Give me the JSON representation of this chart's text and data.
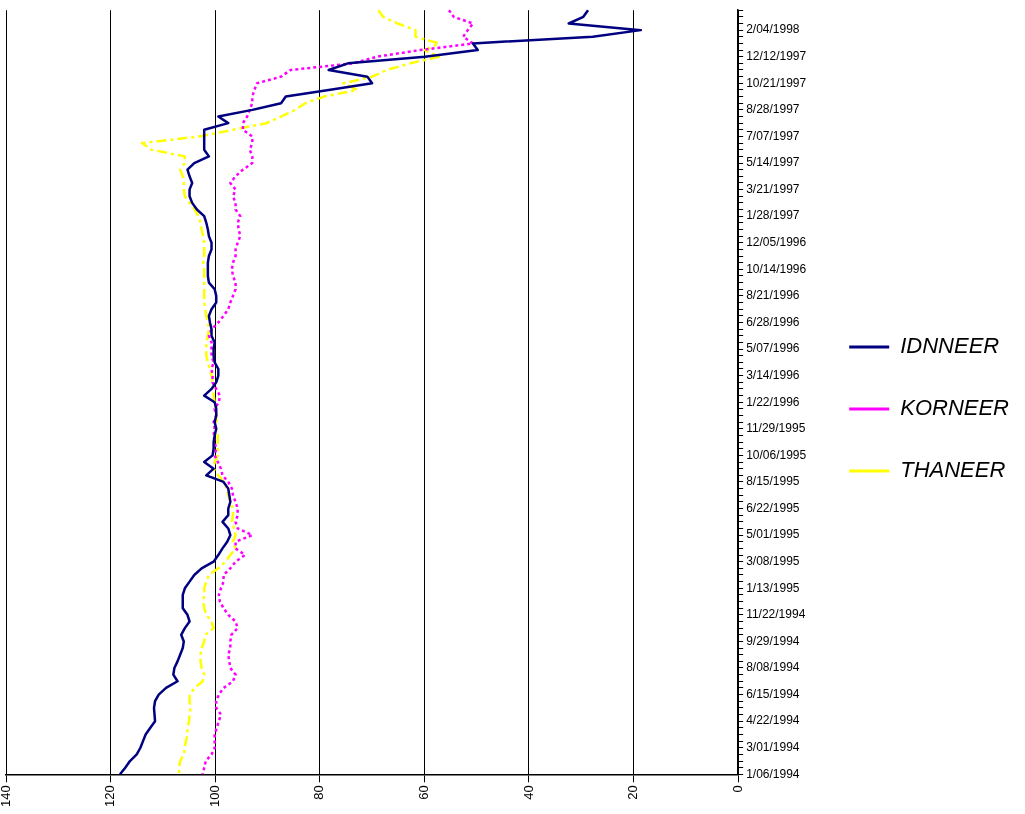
{
  "chart_data": {
    "type": "line",
    "orientation": "horizontal",
    "categories": [
      null,
      null,
      null,
      "2/04/1998",
      null,
      null,
      null,
      "12/12/1997",
      null,
      null,
      null,
      "10/21/1997",
      null,
      null,
      null,
      "8/28/1997",
      null,
      null,
      null,
      "7/07/1997",
      null,
      null,
      null,
      "5/14/1997",
      null,
      null,
      null,
      "3/21/1997",
      null,
      null,
      null,
      "1/28/1997",
      null,
      null,
      null,
      "12/05/1996",
      null,
      null,
      null,
      "10/14/1996",
      null,
      null,
      null,
      "8/21/1996",
      null,
      null,
      null,
      "6/28/1996",
      null,
      null,
      null,
      "5/07/1996",
      null,
      null,
      null,
      "3/14/1996",
      null,
      null,
      null,
      "1/22/1996",
      null,
      null,
      null,
      "11/29/1995",
      null,
      null,
      null,
      "10/06/1995",
      null,
      null,
      null,
      "8/15/1995",
      null,
      null,
      null,
      "6/22/1995",
      null,
      null,
      null,
      "5/01/1995",
      null,
      null,
      null,
      "3/08/1995",
      null,
      null,
      null,
      "1/13/1995",
      null,
      null,
      null,
      "11/22/1994",
      null,
      null,
      null,
      "9/29/1994",
      null,
      null,
      null,
      "8/08/1994",
      null,
      null,
      null,
      "6/15/1994",
      null,
      null,
      null,
      "4/22/1994",
      null,
      null,
      null,
      "3/01/1994",
      null,
      null,
      null,
      "1/06/1994"
    ],
    "series": [
      {
        "name": "IDNNEER",
        "color": "#000080",
        "line_style": "solid",
        "values": [
          28.7,
          29.6,
          32.4,
          18.6,
          27.8,
          50.7,
          49.8,
          59.9,
          74.6,
          78.3,
          70.9,
          70,
          78.3,
          86.5,
          87.4,
          92.9,
          99.4,
          97.5,
          102.1,
          102.1,
          102.1,
          102.1,
          101.2,
          104,
          105.3,
          104.9,
          104.4,
          104.9,
          104.9,
          104.4,
          103.5,
          102.1,
          101.7,
          101.4,
          101.2,
          100.7,
          100.7,
          101.2,
          101.4,
          101.4,
          101.4,
          101.2,
          100.1,
          99.8,
          99.8,
          100.7,
          101.2,
          101,
          100.7,
          100.7,
          100.1,
          100.3,
          100.3,
          100.1,
          99.4,
          99.4,
          99.8,
          100.7,
          102.1,
          100.1,
          99.8,
          99.8,
          100.1,
          99.8,
          100.1,
          100.3,
          100.3,
          100.5,
          102.1,
          100.3,
          101.7,
          98.4,
          97.5,
          97.3,
          97.1,
          97.5,
          97.5,
          98.6,
          97.5,
          97.1,
          97.7,
          98.6,
          99.4,
          100.3,
          102.6,
          104,
          104.9,
          105.8,
          106.2,
          106.2,
          106.2,
          105.3,
          104.9,
          105.8,
          106.5,
          106,
          106.2,
          106.7,
          107.2,
          107.8,
          108,
          107.2,
          109.4,
          110.8,
          111.5,
          111.7,
          111.6,
          111.5,
          112.4,
          113.3,
          113.8,
          114.3,
          115,
          116.3,
          117.2,
          118.2
        ]
      },
      {
        "name": "KORNEER",
        "color": "#ff00ff",
        "line_style": "dotted",
        "values": [
          55.3,
          54.4,
          50.7,
          51.7,
          52.6,
          50.7,
          60.8,
          69.1,
          73.6,
          85.6,
          87.4,
          92,
          92.5,
          92.9,
          92.9,
          93.4,
          93.9,
          94.7,
          94.7,
          92.9,
          92.9,
          93.4,
          92.9,
          92.9,
          94.7,
          96.1,
          97.1,
          96.1,
          96.6,
          96.1,
          96.1,
          95.2,
          95.7,
          95.5,
          95.2,
          95.7,
          96.1,
          96.1,
          96.6,
          96.8,
          96.6,
          96.1,
          96.1,
          96.6,
          97.1,
          97.5,
          98.4,
          99.4,
          100.7,
          101.2,
          100.7,
          100.7,
          100.7,
          100.3,
          100.7,
          100.5,
          100.5,
          99.8,
          99.1,
          99.3,
          100.1,
          99.8,
          100.3,
          100.1,
          100.3,
          100.1,
          99.8,
          100.1,
          99.5,
          98.9,
          98.6,
          97.5,
          96.8,
          96.6,
          96.1,
          95.7,
          95.7,
          96.1,
          95.7,
          92.9,
          96.1,
          96.1,
          94.3,
          96.1,
          97.1,
          98.4,
          98.4,
          98.9,
          99.3,
          99.1,
          98.4,
          97.5,
          96.1,
          95.7,
          96.9,
          97.1,
          97.1,
          97.5,
          97.3,
          97.1,
          96.1,
          96.6,
          98.4,
          99.3,
          99.8,
          99.8,
          98.9,
          99.3,
          99.7,
          100.1,
          100.1,
          100.1,
          100.7,
          101.8,
          102.1,
          102.4
        ]
      },
      {
        "name": "THANEER",
        "color": "#ffff00",
        "line_style": "dashdot",
        "values": [
          68.8,
          67.9,
          65.1,
          61.7,
          61.7,
          57.2,
          59.9,
          57.2,
          62.7,
          67.2,
          70,
          75.5,
          72.8,
          79.2,
          82.8,
          84.7,
          87.4,
          90.2,
          96.6,
          103,
          114,
          112.2,
          105.8,
          105.8,
          106.7,
          106.2,
          106,
          106,
          105.8,
          104.9,
          103.9,
          103.2,
          102.8,
          102.6,
          102.3,
          102.1,
          102.1,
          102.1,
          102.3,
          102.1,
          102.1,
          102.1,
          102.1,
          102.1,
          102.1,
          101.9,
          101.7,
          101.4,
          101.2,
          101.4,
          101.7,
          101.7,
          101.7,
          101.4,
          101,
          100.7,
          100.5,
          100.3,
          100.3,
          100.1,
          99.8,
          99.8,
          99.8,
          99.8,
          99.5,
          99.5,
          99.5,
          99.5,
          100.1,
          100.3,
          99.4,
          98.4,
          97.7,
          97.5,
          97.1,
          96.6,
          96.6,
          96.8,
          96.4,
          96.1,
          96.6,
          96.1,
          97.1,
          98,
          99.4,
          101.2,
          101.7,
          102.1,
          102.1,
          102.3,
          102.1,
          101.7,
          100.7,
          100.3,
          101.9,
          102.1,
          102.6,
          102.8,
          102.8,
          102.6,
          102.1,
          102.4,
          103.9,
          104.9,
          104.9,
          104.7,
          104.9,
          105,
          105.3,
          105.3,
          105.6,
          105.8,
          106,
          106.7,
          106.9,
          106.9
        ]
      }
    ],
    "xlim": [
      140,
      0
    ],
    "xticks": [
      0,
      20,
      40,
      60,
      80,
      100,
      120,
      140
    ],
    "grid": "x",
    "legend": "right"
  }
}
